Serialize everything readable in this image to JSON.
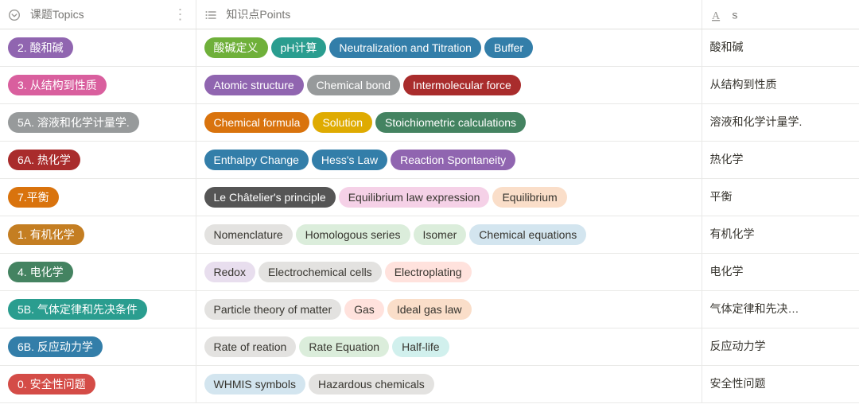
{
  "columns": {
    "topics": {
      "label": "课题Topics"
    },
    "points": {
      "label": "知识点Points"
    },
    "s": {
      "label": "s"
    }
  },
  "colors": {
    "purple": "#9065b0",
    "pink": "#d95f9e",
    "gray": "#979a9b",
    "darkred": "#a92c2c",
    "orange": "#d9730d",
    "darkorange": "#c47e22",
    "green": "#448361",
    "teal": "#2a9d8f",
    "brightred": "#d44c47",
    "blue": "#337ea9",
    "brightgreen": "#6fb03a",
    "yellow": "#dfab01",
    "darkgray": "#555555",
    "lt_gray": "#e3e2e0",
    "lt_green": "#dbeddb",
    "lt_red": "#ffe2dd",
    "lt_blue": "#d3e5ef",
    "lt_pink": "#f5d1e7",
    "lt_orange": "#fadec9",
    "lt_teal": "#d1f0ed",
    "lt_purple": "#e8deee"
  },
  "rows": [
    {
      "topic": {
        "label": "2. 酸和碱",
        "colorKey": "purple"
      },
      "points": [
        {
          "label": "酸碱定义",
          "colorKey": "brightgreen"
        },
        {
          "label": "pH计算",
          "colorKey": "teal"
        },
        {
          "label": "Neutralization and Titration",
          "colorKey": "blue"
        },
        {
          "label": "Buffer",
          "colorKey": "blue"
        }
      ],
      "s": "酸和碱"
    },
    {
      "topic": {
        "label": "3. 从结构到性质",
        "colorKey": "pink"
      },
      "points": [
        {
          "label": "Atomic structure",
          "colorKey": "purple"
        },
        {
          "label": "Chemical bond",
          "colorKey": "gray"
        },
        {
          "label": "Intermolecular force",
          "colorKey": "darkred"
        }
      ],
      "s": "从结构到性质"
    },
    {
      "topic": {
        "label": "5A. 溶液和化学计量学.",
        "colorKey": "gray"
      },
      "points": [
        {
          "label": "Chemical formula",
          "colorKey": "orange"
        },
        {
          "label": "Solution",
          "colorKey": "yellow"
        },
        {
          "label": "Stoichiometric calculations",
          "colorKey": "green"
        }
      ],
      "s": "溶液和化学计量学."
    },
    {
      "topic": {
        "label": "6A. 热化学",
        "colorKey": "darkred"
      },
      "points": [
        {
          "label": "Enthalpy Change",
          "colorKey": "blue"
        },
        {
          "label": "Hess's Law",
          "colorKey": "blue"
        },
        {
          "label": "Reaction Spontaneity",
          "colorKey": "purple"
        }
      ],
      "s": "热化学"
    },
    {
      "topic": {
        "label": "7.平衡",
        "colorKey": "orange"
      },
      "points": [
        {
          "label": "Le Châtelier's principle",
          "colorKey": "darkgray"
        },
        {
          "label": "Equilibrium law expression",
          "colorKey": "lt_pink",
          "light": true
        },
        {
          "label": "Equilibrium",
          "colorKey": "lt_orange",
          "light": true
        }
      ],
      "s": "平衡"
    },
    {
      "topic": {
        "label": "1. 有机化学",
        "colorKey": "darkorange"
      },
      "points": [
        {
          "label": "Nomenclature",
          "colorKey": "lt_gray",
          "light": true
        },
        {
          "label": "Homologous series",
          "colorKey": "lt_green",
          "light": true
        },
        {
          "label": "Isomer",
          "colorKey": "lt_green",
          "light": true
        },
        {
          "label": "Chemical equations",
          "colorKey": "lt_blue",
          "light": true
        }
      ],
      "s": "有机化学"
    },
    {
      "topic": {
        "label": "4. 电化学",
        "colorKey": "green"
      },
      "points": [
        {
          "label": "Redox",
          "colorKey": "lt_purple",
          "light": true
        },
        {
          "label": "Electrochemical cells",
          "colorKey": "lt_gray",
          "light": true
        },
        {
          "label": "Electroplating",
          "colorKey": "lt_red",
          "light": true
        }
      ],
      "s": "电化学"
    },
    {
      "topic": {
        "label": "5B. 气体定律和先决条件",
        "colorKey": "teal"
      },
      "points": [
        {
          "label": "Particle theory of matter",
          "colorKey": "lt_gray",
          "light": true
        },
        {
          "label": "Gas",
          "colorKey": "lt_red",
          "light": true
        },
        {
          "label": "Ideal gas law",
          "colorKey": "lt_orange",
          "light": true
        }
      ],
      "s": "气体定律和先决…"
    },
    {
      "topic": {
        "label": "6B. 反应动力学",
        "colorKey": "blue"
      },
      "points": [
        {
          "label": "Rate of reation",
          "colorKey": "lt_gray",
          "light": true
        },
        {
          "label": "Rate Equation",
          "colorKey": "lt_green",
          "light": true
        },
        {
          "label": "Half-life",
          "colorKey": "lt_teal",
          "light": true
        }
      ],
      "s": "反应动力学"
    },
    {
      "topic": {
        "label": "0. 安全性问题",
        "colorKey": "brightred"
      },
      "points": [
        {
          "label": "WHMIS symbols",
          "colorKey": "lt_blue",
          "light": true
        },
        {
          "label": "Hazardous chemicals",
          "colorKey": "lt_gray",
          "light": true
        }
      ],
      "s": "安全性问题"
    }
  ]
}
